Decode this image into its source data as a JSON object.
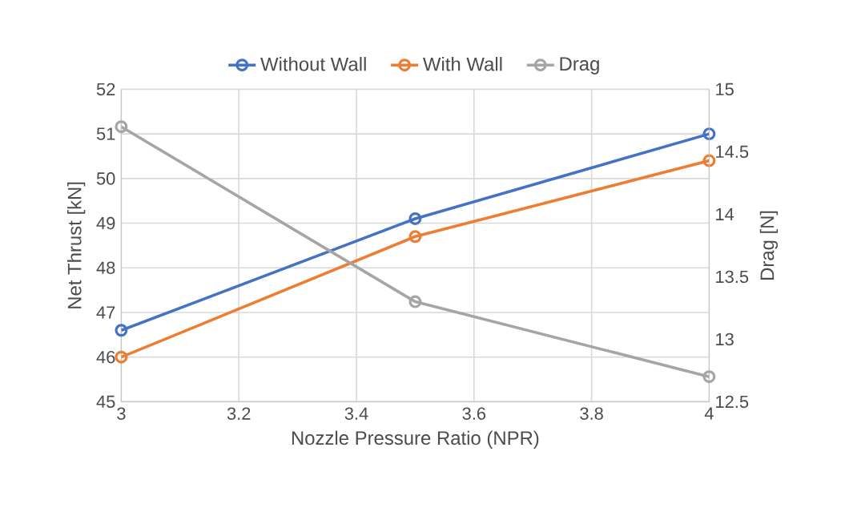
{
  "chart_data": {
    "type": "line",
    "xlabel": "Nozzle Pressure Ratio (NPR)",
    "ylabel": "Net Thrust [kN]",
    "y2label": "Drag [N]",
    "x": [
      3,
      3.5,
      4
    ],
    "series": [
      {
        "name": "Without Wall",
        "color": "#4472c4",
        "values": [
          46.6,
          49.1,
          51.0
        ]
      },
      {
        "name": "With Wall",
        "color": "#ed7d31",
        "values": [
          46.0,
          48.7,
          50.4
        ]
      },
      {
        "name": "Drag",
        "color": "#a5a5a5",
        "values": [
          14.7,
          13.3,
          12.7
        ],
        "axis": "y2"
      }
    ],
    "xlim": [
      3,
      4
    ],
    "xticks": [
      3,
      3.2,
      3.4,
      3.6,
      3.8,
      4
    ],
    "ylim": [
      45,
      52
    ],
    "yticks": [
      45,
      46,
      47,
      48,
      49,
      50,
      51,
      52
    ],
    "y2lim": [
      12.5,
      15
    ],
    "y2ticks": [
      12.5,
      13,
      13.5,
      14,
      14.5,
      15
    ],
    "grid": true,
    "legend": "top",
    "marker": "circle",
    "line_style": "solid"
  }
}
